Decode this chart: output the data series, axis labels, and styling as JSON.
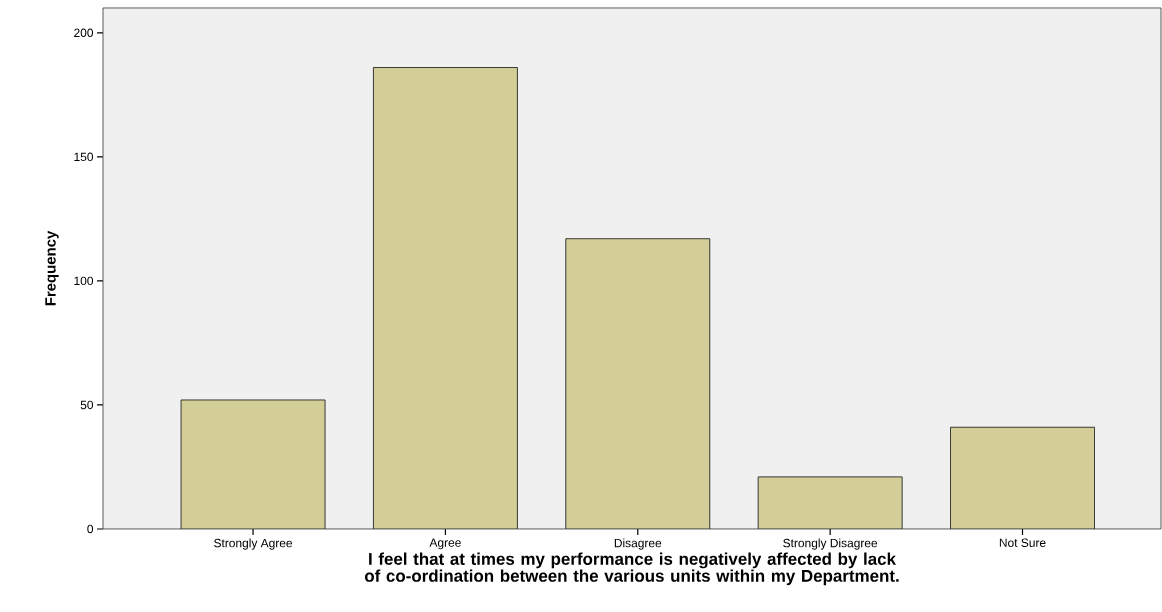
{
  "chart_data": {
    "type": "bar",
    "xlabel": "I feel that at times my performance is negatively affected by lack of co-ordination between the various units within my Department.",
    "ylabel": "Frequency",
    "categories": [
      "Strongly Agree",
      "Agree",
      "Disagree",
      "Strongly Disagree",
      "Not Sure"
    ],
    "values": [
      52,
      186,
      117,
      21,
      41
    ],
    "color": "#d3ce97",
    "ylim": [
      0,
      210
    ],
    "yticks": [
      0,
      50,
      100,
      150,
      200
    ]
  }
}
